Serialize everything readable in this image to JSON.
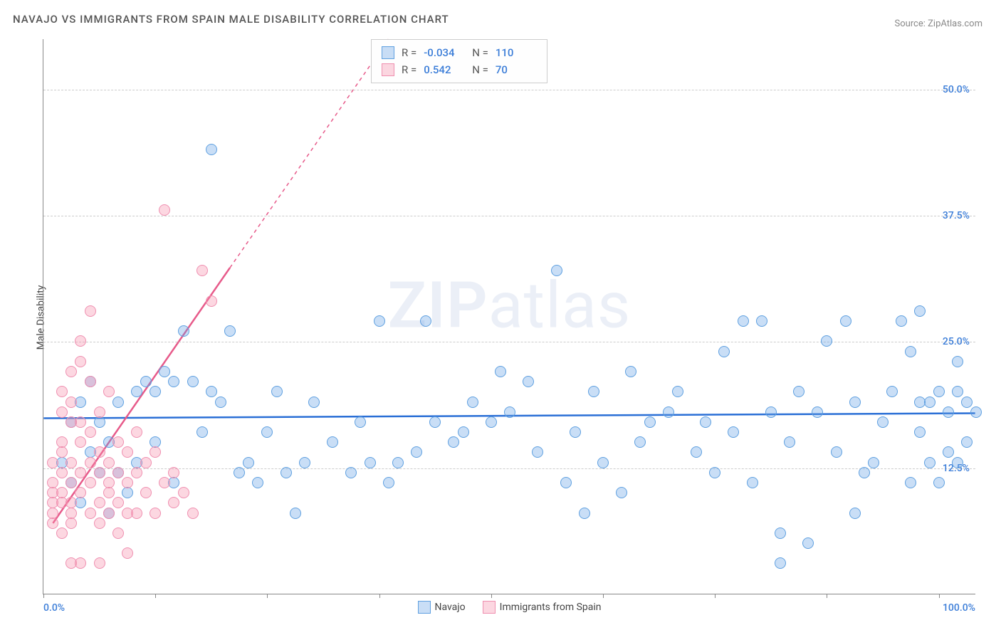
{
  "title": "NAVAJO VS IMMIGRANTS FROM SPAIN MALE DISABILITY CORRELATION CHART",
  "source": "Source: ZipAtlas.com",
  "ylabel": "Male Disability",
  "watermark_bold": "ZIP",
  "watermark_rest": "atlas",
  "chart": {
    "type": "scatter",
    "background_color": "#ffffff",
    "grid_color": "#cccccc",
    "axis_color": "#888888",
    "xlim": [
      0,
      100
    ],
    "ylim": [
      0,
      55
    ],
    "xticks": [
      0,
      12,
      24,
      36,
      48,
      60,
      72,
      84,
      96
    ],
    "x_label_min": "0.0%",
    "x_label_max": "100.0%",
    "x_label_color": "#3b7dd8",
    "ygrid": [
      {
        "v": 12.5,
        "label": "12.5%"
      },
      {
        "v": 25.0,
        "label": "25.0%"
      },
      {
        "v": 37.5,
        "label": "37.5%"
      },
      {
        "v": 50.0,
        "label": "50.0%"
      }
    ],
    "ytick_color": "#3b7dd8",
    "marker_radius": 8,
    "series": [
      {
        "name": "Navajo",
        "fill_color": "rgba(100,160,230,0.35)",
        "stroke_color": "#5fa0e0",
        "trend_color": "#2a6fd6",
        "trend_width": 2.5,
        "trend_dash": "none",
        "trend": {
          "x1": 0,
          "y1": 17.4,
          "x2": 100,
          "y2": 17.9
        },
        "R": "-0.034",
        "N": "110",
        "points": [
          [
            2,
            13
          ],
          [
            3,
            11
          ],
          [
            3,
            17
          ],
          [
            4,
            19
          ],
          [
            4,
            9
          ],
          [
            5,
            14
          ],
          [
            5,
            21
          ],
          [
            6,
            12
          ],
          [
            6,
            17
          ],
          [
            7,
            15
          ],
          [
            7,
            8
          ],
          [
            8,
            19
          ],
          [
            8,
            12
          ],
          [
            9,
            10
          ],
          [
            10,
            13
          ],
          [
            10,
            20
          ],
          [
            11,
            21
          ],
          [
            12,
            20
          ],
          [
            12,
            15
          ],
          [
            13,
            22
          ],
          [
            14,
            21
          ],
          [
            14,
            11
          ],
          [
            15,
            26
          ],
          [
            16,
            21
          ],
          [
            17,
            16
          ],
          [
            18,
            44
          ],
          [
            18,
            20
          ],
          [
            19,
            19
          ],
          [
            20,
            26
          ],
          [
            21,
            12
          ],
          [
            22,
            13
          ],
          [
            23,
            11
          ],
          [
            24,
            16
          ],
          [
            25,
            20
          ],
          [
            26,
            12
          ],
          [
            27,
            8
          ],
          [
            28,
            13
          ],
          [
            29,
            19
          ],
          [
            31,
            15
          ],
          [
            33,
            12
          ],
          [
            34,
            17
          ],
          [
            35,
            13
          ],
          [
            36,
            27
          ],
          [
            37,
            11
          ],
          [
            38,
            13
          ],
          [
            40,
            14
          ],
          [
            41,
            27
          ],
          [
            42,
            17
          ],
          [
            44,
            15
          ],
          [
            45,
            16
          ],
          [
            46,
            19
          ],
          [
            48,
            17
          ],
          [
            49,
            22
          ],
          [
            50,
            18
          ],
          [
            52,
            21
          ],
          [
            53,
            14
          ],
          [
            55,
            32
          ],
          [
            56,
            11
          ],
          [
            57,
            16
          ],
          [
            58,
            8
          ],
          [
            59,
            20
          ],
          [
            60,
            13
          ],
          [
            62,
            10
          ],
          [
            63,
            22
          ],
          [
            64,
            15
          ],
          [
            65,
            17
          ],
          [
            67,
            18
          ],
          [
            68,
            20
          ],
          [
            70,
            14
          ],
          [
            71,
            17
          ],
          [
            72,
            12
          ],
          [
            73,
            24
          ],
          [
            74,
            16
          ],
          [
            75,
            27
          ],
          [
            76,
            11
          ],
          [
            77,
            27
          ],
          [
            78,
            18
          ],
          [
            79,
            6
          ],
          [
            80,
            15
          ],
          [
            81,
            20
          ],
          [
            82,
            5
          ],
          [
            83,
            18
          ],
          [
            84,
            25
          ],
          [
            85,
            14
          ],
          [
            86,
            27
          ],
          [
            87,
            19
          ],
          [
            88,
            12
          ],
          [
            89,
            13
          ],
          [
            90,
            17
          ],
          [
            91,
            20
          ],
          [
            92,
            27
          ],
          [
            93,
            11
          ],
          [
            93,
            24
          ],
          [
            94,
            28
          ],
          [
            94,
            19
          ],
          [
            95,
            13
          ],
          [
            96,
            20
          ],
          [
            97,
            18
          ],
          [
            97,
            14
          ],
          [
            98,
            23
          ],
          [
            98,
            20
          ],
          [
            99,
            15
          ],
          [
            99,
            19
          ],
          [
            100,
            18
          ],
          [
            98,
            13
          ],
          [
            96,
            11
          ],
          [
            95,
            19
          ],
          [
            94,
            16
          ],
          [
            87,
            8
          ],
          [
            79,
            3
          ]
        ]
      },
      {
        "name": "Immigrants from Spain",
        "fill_color": "rgba(245,140,170,0.35)",
        "stroke_color": "#ef8fb0",
        "trend_color": "#e75a8a",
        "trend_width": 2.5,
        "trend_dash": "dashed_above",
        "trend_solid_until_x": 20,
        "trend": {
          "x1": 1,
          "y1": 7,
          "x2": 37,
          "y2": 55
        },
        "R": "0.542",
        "N": "70",
        "points": [
          [
            1,
            7
          ],
          [
            1,
            9
          ],
          [
            1,
            11
          ],
          [
            1,
            13
          ],
          [
            1,
            10
          ],
          [
            1,
            8
          ],
          [
            2,
            6
          ],
          [
            2,
            9
          ],
          [
            2,
            10
          ],
          [
            2,
            15
          ],
          [
            2,
            12
          ],
          [
            2,
            14
          ],
          [
            2,
            18
          ],
          [
            2,
            20
          ],
          [
            3,
            7
          ],
          [
            3,
            9
          ],
          [
            3,
            11
          ],
          [
            3,
            13
          ],
          [
            3,
            19
          ],
          [
            3,
            22
          ],
          [
            3,
            17
          ],
          [
            3,
            8
          ],
          [
            4,
            10
          ],
          [
            4,
            12
          ],
          [
            4,
            15
          ],
          [
            4,
            17
          ],
          [
            4,
            23
          ],
          [
            4,
            25
          ],
          [
            5,
            8
          ],
          [
            5,
            11
          ],
          [
            5,
            13
          ],
          [
            5,
            16
          ],
          [
            5,
            21
          ],
          [
            5,
            28
          ],
          [
            6,
            9
          ],
          [
            6,
            12
          ],
          [
            6,
            14
          ],
          [
            6,
            18
          ],
          [
            6,
            7
          ],
          [
            7,
            10
          ],
          [
            7,
            13
          ],
          [
            7,
            20
          ],
          [
            7,
            11
          ],
          [
            7,
            8
          ],
          [
            8,
            12
          ],
          [
            8,
            15
          ],
          [
            8,
            9
          ],
          [
            8,
            6
          ],
          [
            9,
            11
          ],
          [
            9,
            14
          ],
          [
            9,
            8
          ],
          [
            9,
            4
          ],
          [
            10,
            12
          ],
          [
            10,
            16
          ],
          [
            10,
            8
          ],
          [
            11,
            13
          ],
          [
            11,
            10
          ],
          [
            12,
            8
          ],
          [
            12,
            14
          ],
          [
            13,
            11
          ],
          [
            13,
            38
          ],
          [
            14,
            9
          ],
          [
            14,
            12
          ],
          [
            15,
            10
          ],
          [
            16,
            8
          ],
          [
            17,
            32
          ],
          [
            18,
            29
          ],
          [
            6,
            3
          ],
          [
            3,
            3
          ],
          [
            4,
            3
          ]
        ]
      }
    ]
  },
  "stats_box": {
    "label_R": "R =",
    "label_N": "N =",
    "value_color": "#3b7dd8"
  },
  "legend": {
    "items": [
      "Navajo",
      "Immigrants from Spain"
    ]
  }
}
